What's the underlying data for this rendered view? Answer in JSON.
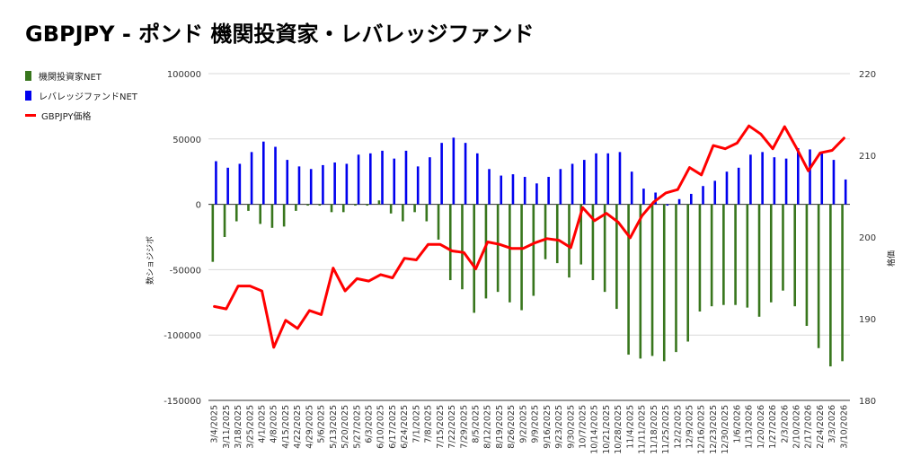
{
  "title": "GBPJPY - ポンド 機関投資家・レバレッジファンド",
  "chart_data": {
    "type": "bar",
    "title": "GBPJPY - ポンド 機関投資家・レバレッジファンド",
    "ylabel_left": "数ショジジボ",
    "ylabel_right": "格価",
    "legend_position": "left",
    "y_left": {
      "min": -150000,
      "max": 100000,
      "ticks": [
        -150000,
        -100000,
        -50000,
        0,
        50000,
        100000
      ]
    },
    "y_right": {
      "min": 180,
      "max": 220,
      "ticks": [
        180,
        190,
        200,
        210,
        220
      ]
    },
    "categories": [
      "3/4/2025",
      "3/11/2025",
      "3/18/2025",
      "3/25/2025",
      "4/1/2025",
      "4/8/2025",
      "4/15/2025",
      "4/22/2025",
      "4/29/2025",
      "5/6/2025",
      "5/13/2025",
      "5/20/2025",
      "5/27/2025",
      "6/3/2025",
      "6/10/2025",
      "6/17/2025",
      "6/24/2025",
      "7/1/2025",
      "7/8/2025",
      "7/15/2025",
      "7/22/2025",
      "7/29/2025",
      "8/5/2025",
      "8/12/2025",
      "8/19/2025",
      "8/26/2025",
      "9/2/2025",
      "9/9/2025",
      "9/16/2025",
      "9/23/2025",
      "9/30/2025",
      "10/7/2025",
      "10/14/2025",
      "10/21/2025",
      "10/28/2025",
      "11/4/2025",
      "11/11/2025",
      "11/18/2025",
      "11/25/2025",
      "12/2/2025",
      "12/9/2025",
      "12/16/2025",
      "12/23/2025",
      "12/30/2025",
      "1/6/2026",
      "1/13/2026",
      "1/20/2026",
      "1/27/2026",
      "2/3/2026",
      "2/10/2026",
      "2/17/2026",
      "2/24/2026",
      "3/3/2026",
      "3/10/2026"
    ],
    "series": [
      {
        "name": "機関投資家NET",
        "type": "bar",
        "axis": "left",
        "color": "#38761d",
        "values": [
          -44000,
          -25000,
          -13000,
          -5000,
          -15000,
          -18000,
          -17000,
          -5000,
          -1000,
          -1000,
          -6000,
          -6000,
          -1000,
          -1000,
          3000,
          -7000,
          -13000,
          -6000,
          -13000,
          -27000,
          -58000,
          -65000,
          -83000,
          -72000,
          -67000,
          -75000,
          -81000,
          -70000,
          -42000,
          -45000,
          -56000,
          -46000,
          -58000,
          -67000,
          -80000,
          -115000,
          -118000,
          -116000,
          -120000,
          -113000,
          -105000,
          -82000,
          -78000,
          -77000,
          -77000,
          -79000,
          -86000,
          -75000,
          -66000,
          -78000,
          -93000,
          -110000,
          -124000,
          -120000
        ]
      },
      {
        "name": "レバレッジファンドNET",
        "type": "bar",
        "axis": "left",
        "color": "#0000ee",
        "values": [
          33000,
          28000,
          31000,
          40000,
          48000,
          44000,
          34000,
          29000,
          27000,
          30000,
          32000,
          31000,
          38000,
          39000,
          41000,
          35000,
          41000,
          29000,
          36000,
          47000,
          51000,
          47000,
          39000,
          27000,
          22000,
          23000,
          21000,
          16000,
          21000,
          27000,
          31000,
          34000,
          39000,
          39000,
          40000,
          25000,
          12000,
          9000,
          -1000,
          4000,
          8000,
          14000,
          18000,
          25000,
          28000,
          38000,
          40000,
          36000,
          35000,
          43000,
          42000,
          40000,
          34000,
          19000
        ]
      },
      {
        "name": "GBPJPY価格",
        "type": "line",
        "axis": "right",
        "color": "#ff0000",
        "values": [
          191.5,
          191.2,
          194,
          194,
          193.4,
          186.5,
          189.8,
          188.8,
          191,
          190.5,
          196.2,
          193.4,
          194.9,
          194.6,
          195.4,
          195,
          197.4,
          197.2,
          199.1,
          199.1,
          198.3,
          198.1,
          196.1,
          199.4,
          199.1,
          198.6,
          198.6,
          199.3,
          199.8,
          199.6,
          198.7,
          203.6,
          202,
          202.9,
          201.8,
          199.9,
          202.6,
          204.3,
          205.4,
          205.8,
          208.5,
          207.6,
          211.2,
          210.8,
          211.5,
          213.6,
          212.6,
          210.8,
          213.5,
          210.9,
          208.1,
          210.3,
          210.6,
          212.1
        ]
      }
    ]
  }
}
